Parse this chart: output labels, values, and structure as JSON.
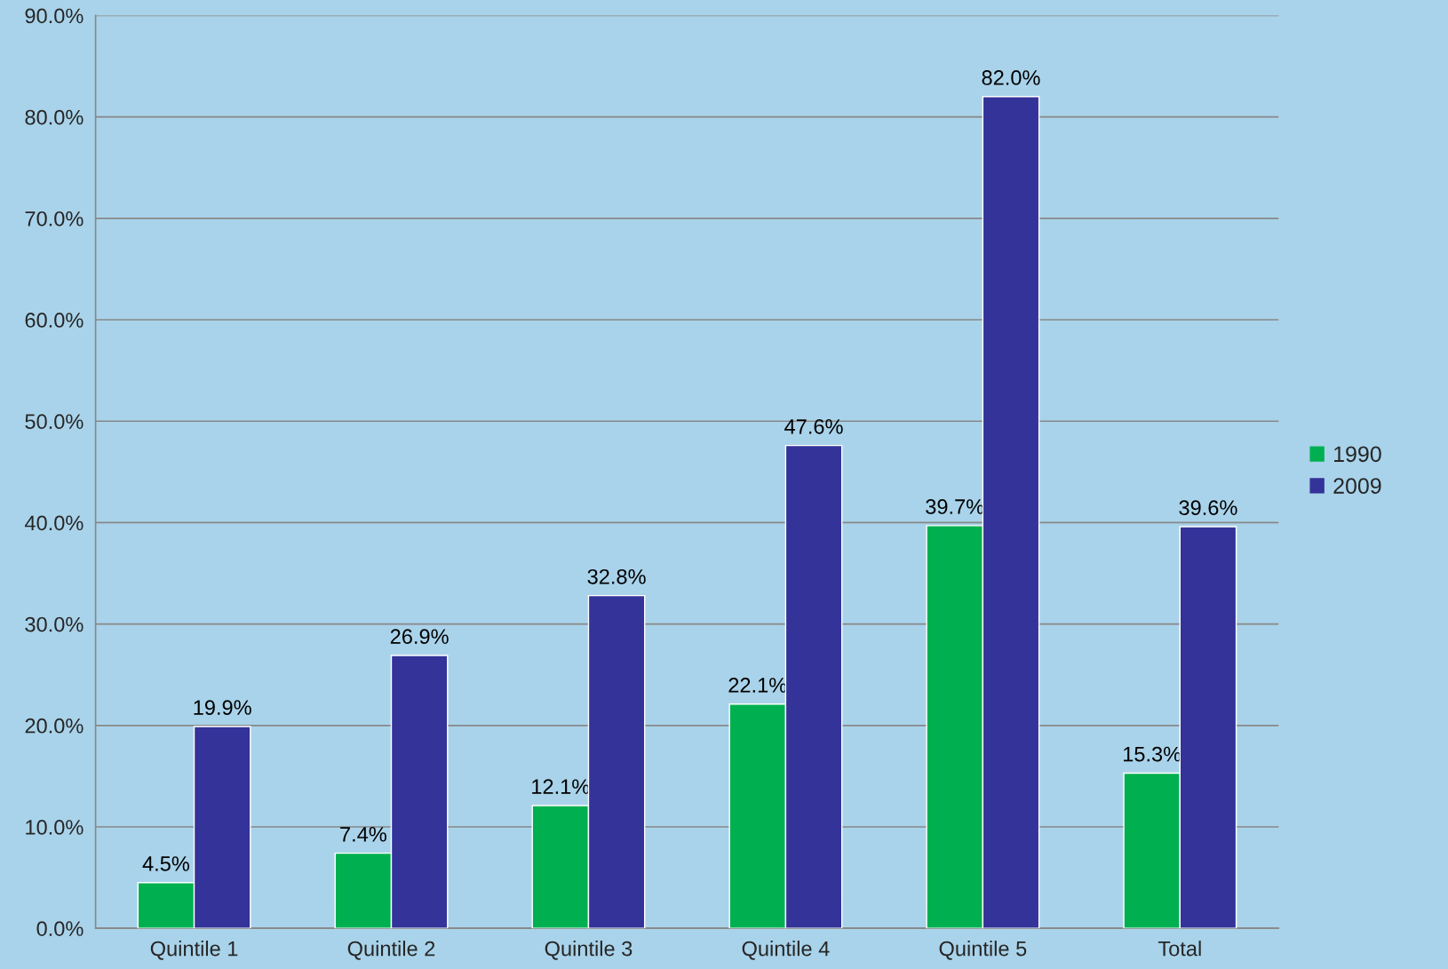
{
  "chart_data": {
    "type": "bar",
    "categories": [
      "Quintile 1",
      "Quintile 2",
      "Quintile 3",
      "Quintile 4",
      "Quintile 5",
      "Total"
    ],
    "series": [
      {
        "name": "1990",
        "color": "#00b050",
        "values": [
          4.5,
          7.4,
          12.1,
          22.1,
          39.7,
          15.3
        ],
        "value_labels": [
          "4.5%",
          "7.4%",
          "12.1%",
          "22.1%",
          "39.7%",
          "15.3%"
        ]
      },
      {
        "name": "2009",
        "color": "#333399",
        "values": [
          19.9,
          26.9,
          32.8,
          47.6,
          82.0,
          39.6
        ],
        "value_labels": [
          "19.9%",
          "26.9%",
          "32.8%",
          "47.6%",
          "82.0%",
          "39.6%"
        ]
      }
    ],
    "ylim": [
      0,
      90
    ],
    "yticks": [
      {
        "value": 0,
        "label": "0.0%"
      },
      {
        "value": 10,
        "label": "10.0%"
      },
      {
        "value": 20,
        "label": "20.0%"
      },
      {
        "value": 30,
        "label": "30.0%"
      },
      {
        "value": 40,
        "label": "40.0%"
      },
      {
        "value": 50,
        "label": "50.0%"
      },
      {
        "value": 60,
        "label": "60.0%"
      },
      {
        "value": 70,
        "label": "70.0%"
      },
      {
        "value": 80,
        "label": "80.0%"
      },
      {
        "value": 90,
        "label": "90.0%"
      }
    ],
    "grid": "y",
    "legend": "right"
  }
}
